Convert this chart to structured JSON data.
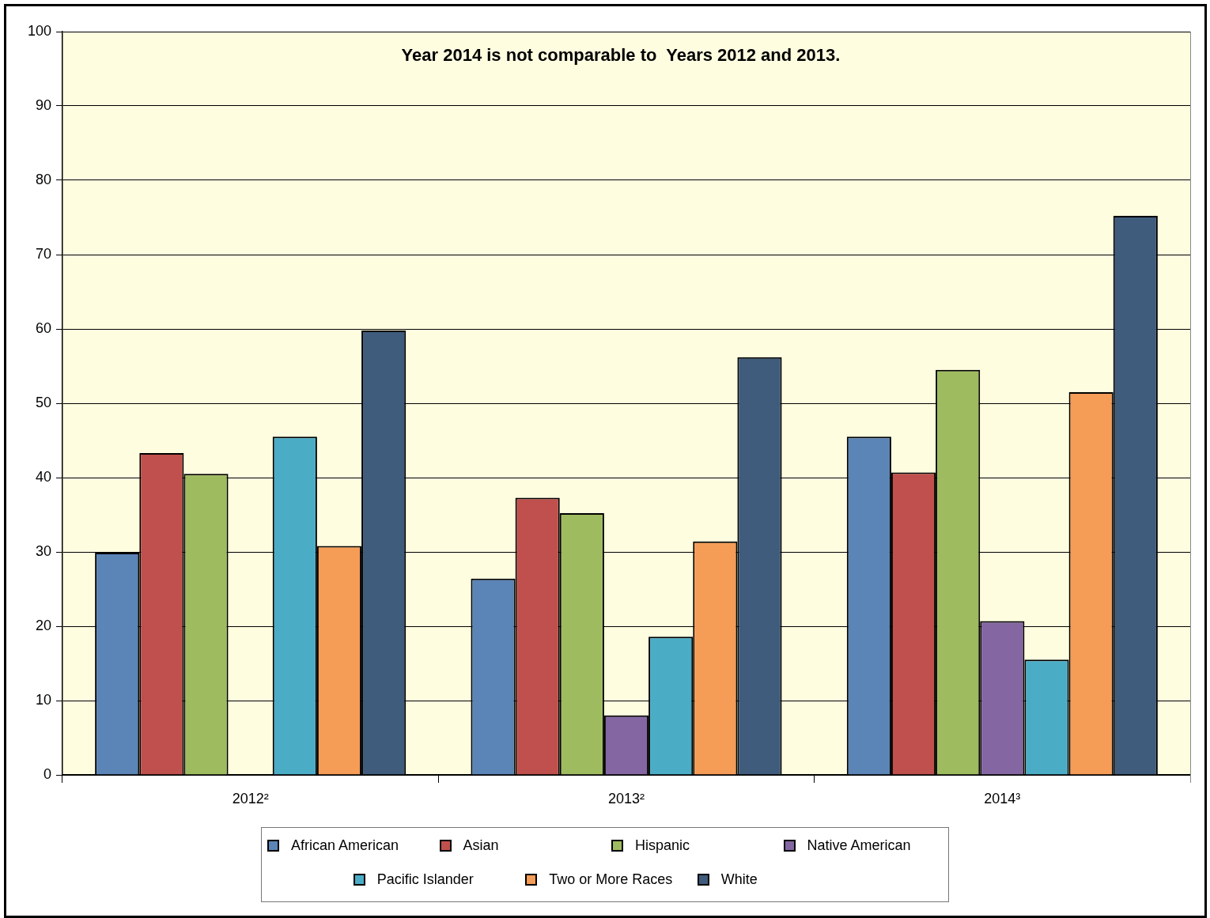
{
  "chart_data": {
    "type": "bar",
    "title": "Year 2014 is not comparable to  Years 2012 and 2013.",
    "categories": [
      "2012²",
      "2013²",
      "2014³"
    ],
    "series": [
      {
        "name": "African American",
        "color": "#5b84b7",
        "values": [
          29.9,
          26.4,
          45.5
        ]
      },
      {
        "name": "Asian",
        "color": "#c0504d",
        "values": [
          43.3,
          37.3,
          40.7
        ]
      },
      {
        "name": "Hispanic",
        "color": "#9fbb5f",
        "values": [
          40.5,
          35.2,
          54.5
        ]
      },
      {
        "name": "Native American",
        "color": "#8366a2",
        "values": [
          null,
          8.0,
          20.7
        ]
      },
      {
        "name": "Pacific Islander",
        "color": "#4bacc6",
        "values": [
          45.5,
          18.6,
          15.5
        ]
      },
      {
        "name": "Two or More Races",
        "color": "#f59c57",
        "values": [
          30.8,
          31.4,
          51.5
        ]
      },
      {
        "name": "White",
        "color": "#3f5c7c",
        "values": [
          59.8,
          56.2,
          75.2
        ]
      }
    ],
    "ylim": [
      0,
      100
    ],
    "yticks": [
      0,
      10,
      20,
      30,
      40,
      50,
      60,
      70,
      80,
      90,
      100
    ],
    "grid": "y",
    "legend": "bottom"
  }
}
